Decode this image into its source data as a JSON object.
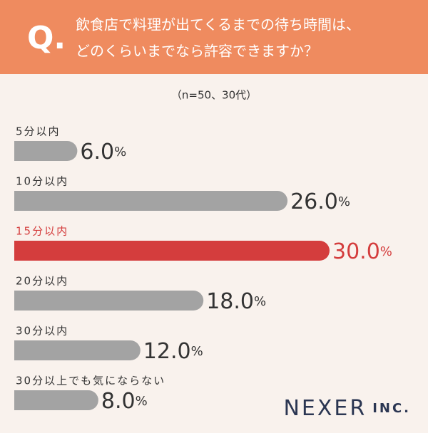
{
  "header": {
    "q_mark": "Q.",
    "question_lines": [
      "飲食店で料理が出てくるまでの待ち時間は、",
      "どのくらいまでなら許容できますか？"
    ]
  },
  "chart_data": {
    "type": "bar",
    "orientation": "horizontal",
    "subtitle": "（n=50、30代）",
    "categories": [
      "5分以内",
      "10分以内",
      "15分以内",
      "20分以内",
      "30分以内",
      "30分以上でも気にならない"
    ],
    "values": [
      6.0,
      26.0,
      30.0,
      18.0,
      12.0,
      8.0
    ],
    "value_labels": [
      "6.0%",
      "26.0%",
      "30.0%",
      "18.0%",
      "12.0%",
      "8.0%"
    ],
    "colors": [
      "#a3a3a3",
      "#a3a3a3",
      "#d43d3d",
      "#a3a3a3",
      "#a3a3a3",
      "#a3a3a3"
    ],
    "label_colors": [
      "#333333",
      "#333333",
      "#d43d3d",
      "#333333",
      "#333333",
      "#333333"
    ]
  },
  "logo": {
    "name": "NEXER",
    "suffix": "INC."
  }
}
